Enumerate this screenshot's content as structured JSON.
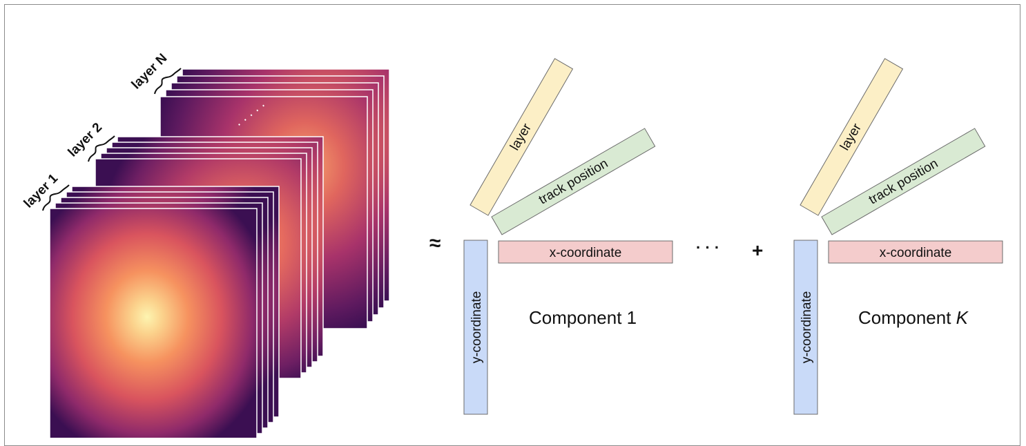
{
  "stacks": {
    "layer1_label": "layer 1",
    "layer2_label": "layer 2",
    "layerN_label": "layer N",
    "ellipsis": ". . . . ."
  },
  "components": [
    {
      "layer_label": "layer",
      "track_label": "track position",
      "x_label": "x-coordinate",
      "y_label": "y-coordinate",
      "title_text": "Component 1",
      "title_italic": ""
    },
    {
      "layer_label": "layer",
      "track_label": "track position",
      "x_label": "x-coordinate",
      "y_label": "y-coordinate",
      "title_text": "Component ",
      "title_italic": "K"
    }
  ],
  "operators": {
    "approx": "≈",
    "dots": "· · ·",
    "plus": "+"
  },
  "colors": {
    "layer_bar": "#fcefc6",
    "track_bar": "#d9ead3",
    "x_bar": "#f4cccc",
    "y_bar": "#c9daf8",
    "bar_border": "#6b6b6b",
    "heat_dark": "#3b0f52",
    "heat_mid": "#c43c5e",
    "heat_orange": "#f6925f",
    "heat_light": "#fdf4b0"
  }
}
